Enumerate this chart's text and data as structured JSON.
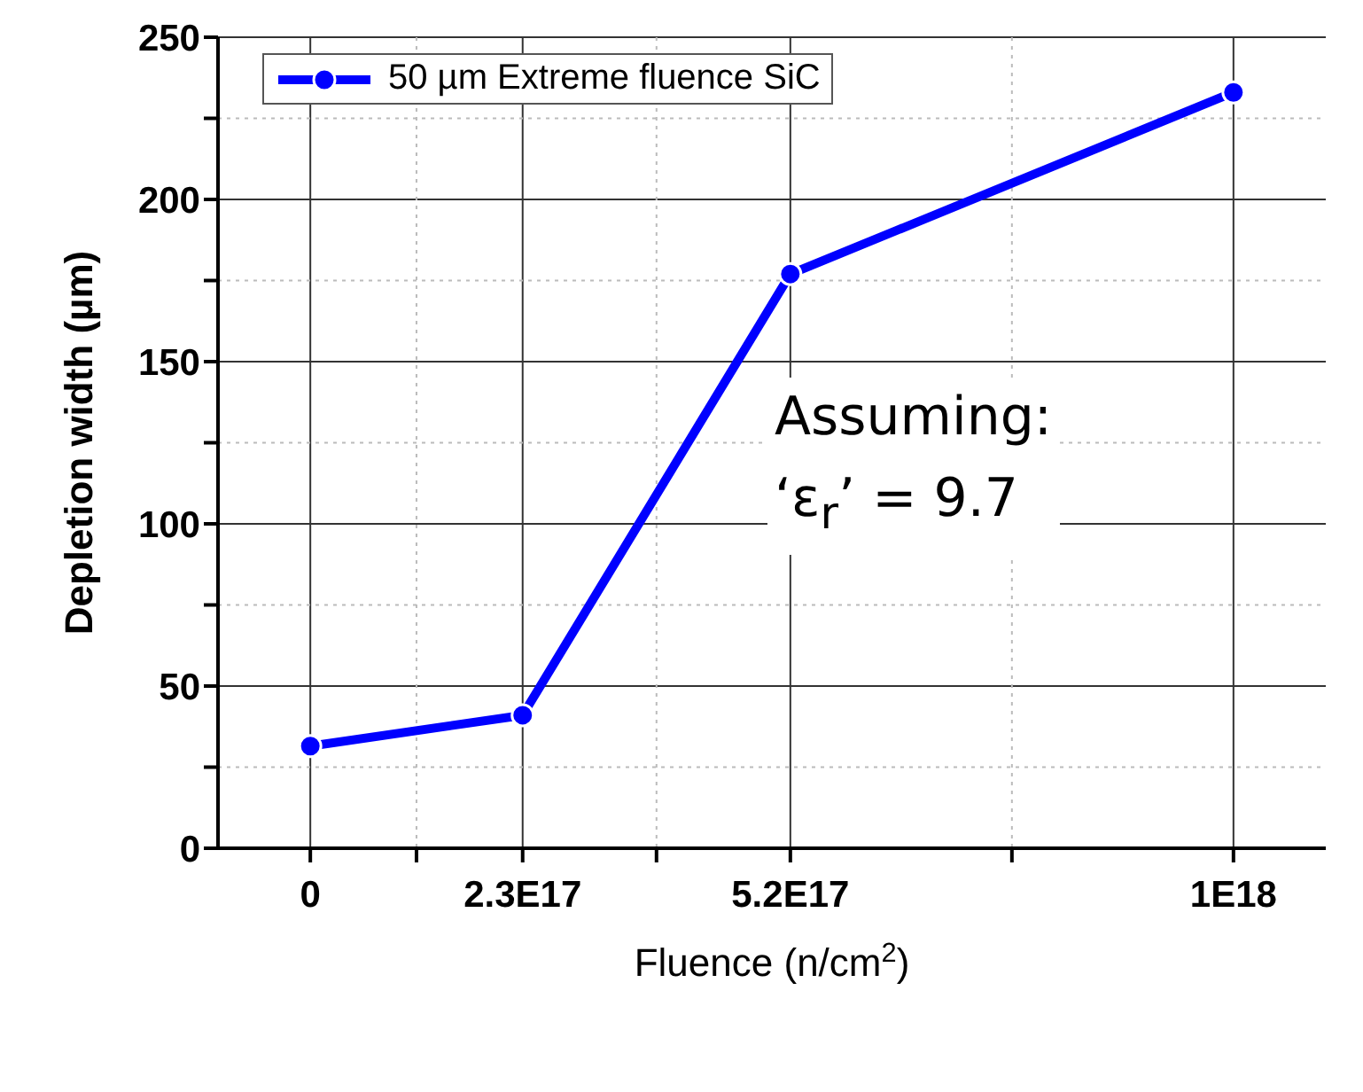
{
  "chart_data": {
    "type": "line",
    "xlabel": "Fluence (n/cm$^{2}$)",
    "ylabel": "Depletion width (µm)",
    "x": [
      0,
      2.3e+17,
      5.2e+17,
      1e+18
    ],
    "series": [
      {
        "name": "50 µm Extreme fluence SiC",
        "color": "#0000ff",
        "values": [
          31.5,
          41,
          177,
          233
        ]
      }
    ],
    "xlim": [
      -1e+17,
      1.1e+18
    ],
    "xticks": [
      {
        "value": 0,
        "label": "0"
      },
      {
        "value": 1.15e+17,
        "label": null
      },
      {
        "value": 2.3e+17,
        "label": "2.3E17"
      },
      {
        "value": 3.75e+17,
        "label": null
      },
      {
        "value": 5.2e+17,
        "label": "5.2E17"
      },
      {
        "value": 7.6e+17,
        "label": null
      },
      {
        "value": 1e+18,
        "label": "1E18"
      }
    ],
    "ylim": [
      0,
      250
    ],
    "yticks": [
      0,
      {
        "value": 25,
        "label": null
      },
      50,
      {
        "value": 75,
        "label": null
      },
      100,
      {
        "value": 125,
        "label": null
      },
      150,
      {
        "value": 175,
        "label": null
      },
      200,
      {
        "value": 225,
        "label": null
      },
      250
    ],
    "grid": true,
    "legend": "top left",
    "marker": "circle",
    "line_style": "solid",
    "annotations": [
      "Assuming:\n‘ε$_{r}$’ = 9.7"
    ]
  }
}
